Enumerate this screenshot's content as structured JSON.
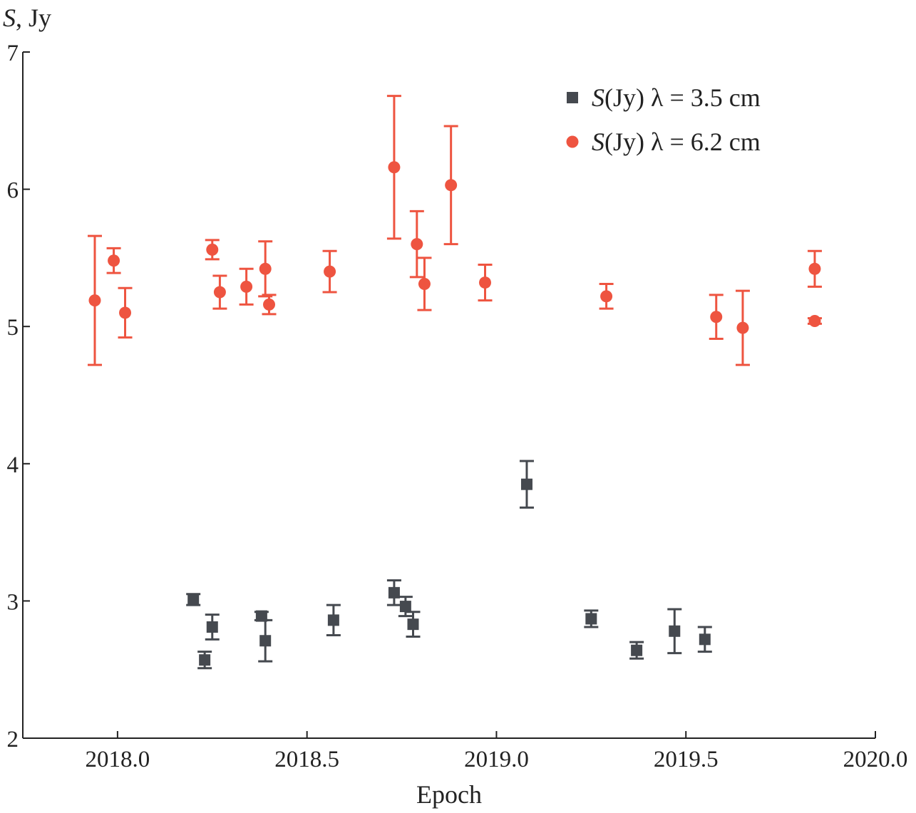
{
  "chart_data": {
    "type": "scatter",
    "title": "",
    "xlabel": "Epoch",
    "ylabel": {
      "symbol": "S",
      "unit": ", Jy"
    },
    "xlim": [
      2017.75,
      2020.0
    ],
    "ylim": [
      2,
      7
    ],
    "xticks": [
      "2018.0",
      "2018.5",
      "2019.0",
      "2019.5",
      "2020.0"
    ],
    "xtick_values": [
      2018.0,
      2018.5,
      2019.0,
      2019.5,
      2020.0
    ],
    "yticks": [
      "2",
      "3",
      "4",
      "5",
      "6",
      "7"
    ],
    "ytick_values": [
      2,
      3,
      4,
      5,
      6,
      7
    ],
    "legend_position": "top-right",
    "series": [
      {
        "name": "S(Jy) λ = 3.5 cm",
        "legend": {
          "symbol": "S",
          "rest": "(Jy) λ = 3.5 cm"
        },
        "marker": "square",
        "color": "#45494f",
        "points": [
          {
            "x": 2018.2,
            "y": 3.01,
            "err": 0.04
          },
          {
            "x": 2018.23,
            "y": 2.57,
            "err": 0.06
          },
          {
            "x": 2018.25,
            "y": 2.81,
            "err": 0.09
          },
          {
            "x": 2018.38,
            "y": 2.89,
            "err": 0.03
          },
          {
            "x": 2018.39,
            "y": 2.71,
            "err": 0.15
          },
          {
            "x": 2018.57,
            "y": 2.86,
            "err": 0.11
          },
          {
            "x": 2018.73,
            "y": 3.06,
            "err": 0.09
          },
          {
            "x": 2018.76,
            "y": 2.96,
            "err": 0.07
          },
          {
            "x": 2018.78,
            "y": 2.83,
            "err": 0.09
          },
          {
            "x": 2019.08,
            "y": 3.85,
            "err": 0.17
          },
          {
            "x": 2019.25,
            "y": 2.87,
            "err": 0.06
          },
          {
            "x": 2019.37,
            "y": 2.64,
            "err": 0.06
          },
          {
            "x": 2019.47,
            "y": 2.78,
            "err": 0.16
          },
          {
            "x": 2019.55,
            "y": 2.72,
            "err": 0.09
          }
        ]
      },
      {
        "name": "S(Jy) λ = 6.2 cm",
        "legend": {
          "symbol": "S",
          "rest": "(Jy) λ = 6.2 cm"
        },
        "marker": "circle",
        "color": "#ee5440",
        "points": [
          {
            "x": 2017.94,
            "y": 5.19,
            "err": 0.47
          },
          {
            "x": 2017.99,
            "y": 5.48,
            "err": 0.09
          },
          {
            "x": 2018.02,
            "y": 5.1,
            "err": 0.18
          },
          {
            "x": 2018.25,
            "y": 5.56,
            "err": 0.07
          },
          {
            "x": 2018.27,
            "y": 5.25,
            "err": 0.12
          },
          {
            "x": 2018.34,
            "y": 5.29,
            "err": 0.13
          },
          {
            "x": 2018.39,
            "y": 5.42,
            "err": 0.2
          },
          {
            "x": 2018.4,
            "y": 5.16,
            "err": 0.07
          },
          {
            "x": 2018.56,
            "y": 5.4,
            "err": 0.15
          },
          {
            "x": 2018.73,
            "y": 6.16,
            "err": 0.52
          },
          {
            "x": 2018.79,
            "y": 5.6,
            "err": 0.24
          },
          {
            "x": 2018.81,
            "y": 5.31,
            "err": 0.19
          },
          {
            "x": 2018.88,
            "y": 6.03,
            "err": 0.43
          },
          {
            "x": 2018.97,
            "y": 5.32,
            "err": 0.13
          },
          {
            "x": 2019.29,
            "y": 5.22,
            "err": 0.09
          },
          {
            "x": 2019.58,
            "y": 5.07,
            "err": 0.16
          },
          {
            "x": 2019.65,
            "y": 4.99,
            "err": 0.27
          },
          {
            "x": 2019.84,
            "y": 5.42,
            "err": 0.13
          },
          {
            "x": 2019.84,
            "y": 5.04,
            "err": 0.02
          }
        ]
      }
    ]
  }
}
